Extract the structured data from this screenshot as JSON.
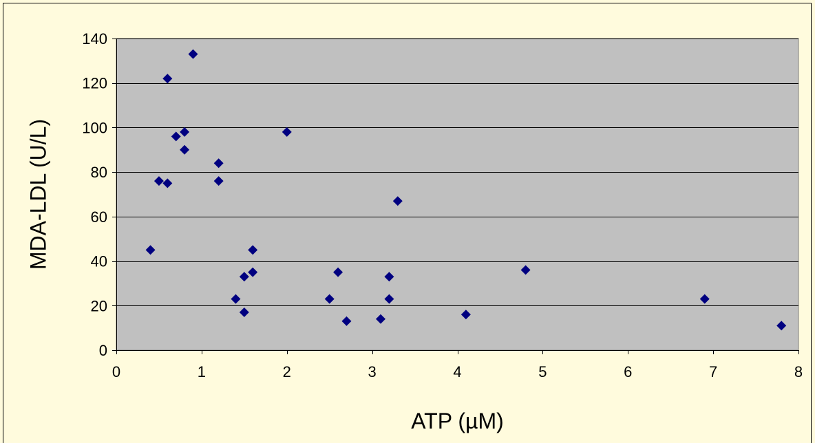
{
  "chart_data": {
    "type": "scatter",
    "title": "",
    "xlabel": "ATP (µM)",
    "ylabel": "MDA-LDL (U/L)",
    "xlim": [
      0,
      8
    ],
    "ylim": [
      0,
      140
    ],
    "xticks": [
      0,
      1,
      2,
      3,
      4,
      5,
      6,
      7,
      8
    ],
    "yticks": [
      0,
      20,
      40,
      60,
      80,
      100,
      120,
      140
    ],
    "grid": "horizontal",
    "legend": "none",
    "colors": {
      "plot_background": "#C0C0C0",
      "page_background": "#FFFBDD",
      "marker": "#000080"
    },
    "marker": "diamond",
    "points": [
      {
        "x": 0.4,
        "y": 45
      },
      {
        "x": 0.5,
        "y": 76
      },
      {
        "x": 0.6,
        "y": 75
      },
      {
        "x": 0.6,
        "y": 122
      },
      {
        "x": 0.7,
        "y": 96
      },
      {
        "x": 0.8,
        "y": 98
      },
      {
        "x": 0.8,
        "y": 90
      },
      {
        "x": 0.9,
        "y": 133
      },
      {
        "x": 1.2,
        "y": 84
      },
      {
        "x": 1.2,
        "y": 76
      },
      {
        "x": 1.4,
        "y": 23
      },
      {
        "x": 1.5,
        "y": 33
      },
      {
        "x": 1.5,
        "y": 17
      },
      {
        "x": 1.6,
        "y": 45
      },
      {
        "x": 1.6,
        "y": 35
      },
      {
        "x": 2.0,
        "y": 98
      },
      {
        "x": 2.5,
        "y": 23
      },
      {
        "x": 2.6,
        "y": 35
      },
      {
        "x": 2.7,
        "y": 13
      },
      {
        "x": 3.1,
        "y": 14
      },
      {
        "x": 3.2,
        "y": 33
      },
      {
        "x": 3.2,
        "y": 23
      },
      {
        "x": 3.3,
        "y": 67
      },
      {
        "x": 4.1,
        "y": 16
      },
      {
        "x": 4.8,
        "y": 36
      },
      {
        "x": 6.9,
        "y": 23
      },
      {
        "x": 7.8,
        "y": 11
      }
    ]
  }
}
